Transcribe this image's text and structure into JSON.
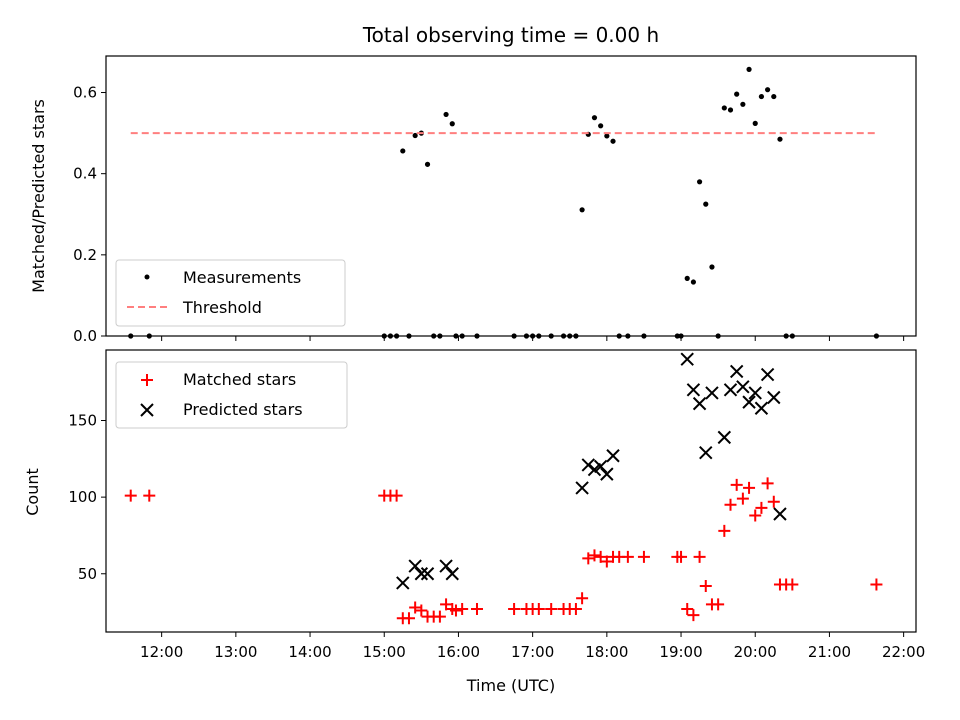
{
  "chart_data": [
    {
      "type": "scatter",
      "title": "Total observing time = 0.00 h",
      "ylabel": "Matched/Predicted stars",
      "xlabel": "",
      "xlim": [
        "11:15",
        "22:10"
      ],
      "ylim": [
        0,
        0.69
      ],
      "yticks": [
        "0.0",
        "0.2",
        "0.4",
        "0.6"
      ],
      "legend_position": "lower-left",
      "series": [
        {
          "name": "Measurements",
          "color": "#000000",
          "marker": "dot",
          "points": [
            [
              "11:35",
              0.0
            ],
            [
              "11:50",
              0.0
            ],
            [
              "15:00",
              0.0
            ],
            [
              "15:05",
              0.0
            ],
            [
              "15:10",
              0.0
            ],
            [
              "15:15",
              0.456
            ],
            [
              "15:20",
              0.0
            ],
            [
              "15:25",
              0.494
            ],
            [
              "15:30",
              0.5
            ],
            [
              "15:35",
              0.423
            ],
            [
              "15:40",
              0.0
            ],
            [
              "15:45",
              0.0
            ],
            [
              "15:50",
              0.546
            ],
            [
              "15:55",
              0.523
            ],
            [
              "15:58",
              0.0
            ],
            [
              "16:03",
              0.0
            ],
            [
              "16:15",
              0.0
            ],
            [
              "16:45",
              0.0
            ],
            [
              "16:55",
              0.0
            ],
            [
              "17:00",
              0.0
            ],
            [
              "17:05",
              0.0
            ],
            [
              "17:15",
              0.0
            ],
            [
              "17:25",
              0.0
            ],
            [
              "17:30",
              0.0
            ],
            [
              "17:35",
              0.0
            ],
            [
              "17:40",
              0.311
            ],
            [
              "17:45",
              0.497
            ],
            [
              "17:50",
              0.538
            ],
            [
              "17:55",
              0.518
            ],
            [
              "18:00",
              0.493
            ],
            [
              "18:05",
              0.48
            ],
            [
              "18:10",
              0.0
            ],
            [
              "18:17",
              0.0
            ],
            [
              "18:30",
              0.0
            ],
            [
              "18:57",
              0.0
            ],
            [
              "19:00",
              0.0
            ],
            [
              "19:05",
              0.142
            ],
            [
              "19:10",
              0.133
            ],
            [
              "19:15",
              0.38
            ],
            [
              "19:20",
              0.325
            ],
            [
              "19:25",
              0.17
            ],
            [
              "19:30",
              0.0
            ],
            [
              "19:35",
              0.562
            ],
            [
              "19:40",
              0.557
            ],
            [
              "19:45",
              0.596
            ],
            [
              "19:50",
              0.571
            ],
            [
              "19:55",
              0.657
            ],
            [
              "20:00",
              0.524
            ],
            [
              "20:05",
              0.59
            ],
            [
              "20:10",
              0.607
            ],
            [
              "20:15",
              0.59
            ],
            [
              "20:20",
              0.485
            ],
            [
              "20:25",
              0.0
            ],
            [
              "20:30",
              0.0
            ],
            [
              "21:38",
              0.0
            ]
          ]
        },
        {
          "name": "Threshold",
          "color": "#ff7f7f",
          "line": "dashed",
          "points": [
            [
              "11:35",
              0.5
            ],
            [
              "21:38",
              0.5
            ]
          ]
        }
      ]
    },
    {
      "type": "scatter",
      "title": "",
      "xlabel": "Time (UTC)",
      "ylabel": "Count",
      "xlim": [
        "11:15",
        "22:10"
      ],
      "ylim": [
        12,
        196
      ],
      "xticks": [
        "12:00",
        "13:00",
        "14:00",
        "15:00",
        "16:00",
        "17:00",
        "18:00",
        "19:00",
        "20:00",
        "21:00",
        "22:00"
      ],
      "yticks": [
        "50",
        "100",
        "150"
      ],
      "legend_position": "top-left",
      "series": [
        {
          "name": "Matched stars",
          "color": "#ff0000",
          "marker": "plus",
          "points": [
            [
              "11:35",
              101
            ],
            [
              "11:50",
              101
            ],
            [
              "15:00",
              101
            ],
            [
              "15:05",
              101
            ],
            [
              "15:10",
              101
            ],
            [
              "15:15",
              21
            ],
            [
              "15:20",
              21
            ],
            [
              "15:25",
              28
            ],
            [
              "15:30",
              26
            ],
            [
              "15:35",
              22
            ],
            [
              "15:40",
              22
            ],
            [
              "15:45",
              22
            ],
            [
              "15:50",
              30
            ],
            [
              "15:55",
              27
            ],
            [
              "15:58",
              26
            ],
            [
              "16:03",
              27
            ],
            [
              "16:15",
              27
            ],
            [
              "16:45",
              27
            ],
            [
              "16:55",
              27
            ],
            [
              "17:00",
              27
            ],
            [
              "17:05",
              27
            ],
            [
              "17:15",
              27
            ],
            [
              "17:25",
              27
            ],
            [
              "17:30",
              27
            ],
            [
              "17:35",
              27
            ],
            [
              "17:40",
              34
            ],
            [
              "17:45",
              60
            ],
            [
              "17:50",
              62
            ],
            [
              "17:55",
              61
            ],
            [
              "18:00",
              58
            ],
            [
              "18:05",
              61
            ],
            [
              "18:10",
              61
            ],
            [
              "18:17",
              61
            ],
            [
              "18:30",
              61
            ],
            [
              "18:57",
              61
            ],
            [
              "19:00",
              61
            ],
            [
              "19:05",
              27
            ],
            [
              "19:10",
              23
            ],
            [
              "19:15",
              61
            ],
            [
              "19:20",
              42
            ],
            [
              "19:25",
              30
            ],
            [
              "19:30",
              30
            ],
            [
              "19:35",
              78
            ],
            [
              "19:40",
              95
            ],
            [
              "19:45",
              108
            ],
            [
              "19:50",
              99
            ],
            [
              "19:55",
              106
            ],
            [
              "20:00",
              88
            ],
            [
              "20:05",
              93
            ],
            [
              "20:10",
              109
            ],
            [
              "20:15",
              97
            ],
            [
              "20:20",
              43
            ],
            [
              "20:25",
              43
            ],
            [
              "20:30",
              43
            ],
            [
              "21:38",
              43
            ]
          ]
        },
        {
          "name": "Predicted stars",
          "color": "#000000",
          "marker": "x",
          "points": [
            [
              "15:15",
              44
            ],
            [
              "15:25",
              55
            ],
            [
              "15:30",
              50
            ],
            [
              "15:35",
              50
            ],
            [
              "15:50",
              55
            ],
            [
              "15:55",
              50
            ],
            [
              "17:40",
              106
            ],
            [
              "17:45",
              121
            ],
            [
              "17:50",
              118
            ],
            [
              "17:55",
              120
            ],
            [
              "18:00",
              115
            ],
            [
              "18:05",
              127
            ],
            [
              "19:05",
              190
            ],
            [
              "19:10",
              170
            ],
            [
              "19:15",
              161
            ],
            [
              "19:20",
              129
            ],
            [
              "19:25",
              168
            ],
            [
              "19:35",
              139
            ],
            [
              "19:40",
              170
            ],
            [
              "19:45",
              182
            ],
            [
              "19:50",
              172
            ],
            [
              "19:55",
              162
            ],
            [
              "20:00",
              168
            ],
            [
              "20:05",
              158
            ],
            [
              "20:10",
              180
            ],
            [
              "20:15",
              165
            ],
            [
              "20:20",
              89
            ]
          ]
        }
      ]
    }
  ]
}
